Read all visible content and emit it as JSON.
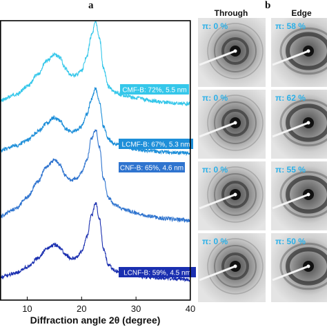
{
  "panel_labels": {
    "a": "a",
    "b": "b"
  },
  "columns": {
    "through": "Through",
    "edge": "Edge"
  },
  "chart_data": {
    "type": "line",
    "xlabel": "Diffraction angle 2θ (degree)",
    "ylabel": "",
    "xlim": [
      5,
      40
    ],
    "xticks": [
      10,
      20,
      30,
      40
    ],
    "grid": false,
    "series": [
      {
        "label": "CMF-B: 72%, 5.5 nm",
        "color": "#35c7ea",
        "x": [
          5,
          8,
          10,
          12,
          13.5,
          15,
          16,
          17,
          18,
          19,
          20,
          21,
          21.8,
          22.6,
          23.3,
          24,
          25,
          26,
          28,
          30,
          32,
          35,
          38,
          40
        ],
        "y": [
          0.05,
          0.16,
          0.3,
          0.52,
          0.75,
          0.86,
          0.82,
          0.62,
          0.5,
          0.5,
          0.58,
          0.85,
          1.2,
          1.43,
          1.15,
          0.62,
          0.3,
          0.2,
          0.14,
          0.1,
          0.06,
          0.02,
          0.0,
          0.0
        ]
      },
      {
        "label": "LCMF-B: 67%, 5.3 nm",
        "color": "#1e8fd9",
        "x": [
          5,
          8,
          10,
          12,
          13.5,
          15,
          16,
          17,
          18,
          19,
          20,
          21,
          21.8,
          22.6,
          23.3,
          24,
          25,
          26,
          28,
          30,
          32,
          35,
          38,
          40
        ],
        "y": [
          0.05,
          0.14,
          0.24,
          0.4,
          0.55,
          0.66,
          0.6,
          0.46,
          0.4,
          0.42,
          0.5,
          0.72,
          1.0,
          1.2,
          0.95,
          0.5,
          0.25,
          0.17,
          0.12,
          0.08,
          0.05,
          0.02,
          0.01,
          0.0
        ]
      },
      {
        "label": "CNF-B: 65%, 4.6 nm",
        "color": "#2f74cf",
        "x": [
          5,
          8,
          10,
          12,
          13.5,
          15,
          16,
          17,
          18,
          19,
          20,
          21,
          21.8,
          22.6,
          23.3,
          24,
          25,
          26,
          28,
          30,
          32,
          35,
          38,
          40
        ],
        "y": [
          0.08,
          0.22,
          0.42,
          0.7,
          0.95,
          1.08,
          1.0,
          0.8,
          0.72,
          0.74,
          0.86,
          1.08,
          1.45,
          1.62,
          1.3,
          0.75,
          0.4,
          0.28,
          0.2,
          0.14,
          0.09,
          0.04,
          0.02,
          0.0
        ]
      },
      {
        "label": "LCNF-B: 59%, 4.5 nm",
        "color": "#1a2fb0",
        "x": [
          5,
          8,
          10,
          12,
          13.5,
          15,
          16,
          17,
          18,
          19,
          20,
          21,
          21.8,
          22.6,
          23.3,
          24,
          25,
          26,
          28,
          30,
          32,
          35,
          38,
          40
        ],
        "y": [
          0.04,
          0.12,
          0.22,
          0.38,
          0.55,
          0.62,
          0.58,
          0.45,
          0.38,
          0.4,
          0.5,
          0.78,
          1.15,
          1.38,
          1.1,
          0.55,
          0.26,
          0.16,
          0.1,
          0.07,
          0.04,
          0.02,
          0.01,
          0.0
        ]
      }
    ]
  },
  "saxs_patterns": [
    {
      "column": "through",
      "label": "π: 0 %"
    },
    {
      "column": "edge",
      "label": "π: 58 %"
    },
    {
      "column": "through",
      "label": "π: 0 %"
    },
    {
      "column": "edge",
      "label": "π: 62 %"
    },
    {
      "column": "through",
      "label": "π: 0 %"
    },
    {
      "column": "edge",
      "label": "π: 55 %"
    },
    {
      "column": "through",
      "label": "π: 0 %"
    },
    {
      "column": "edge",
      "label": "π: 50 %"
    }
  ],
  "colors": {
    "label_box_text": "#ffffff",
    "pi_label": "#2bb0e8"
  }
}
